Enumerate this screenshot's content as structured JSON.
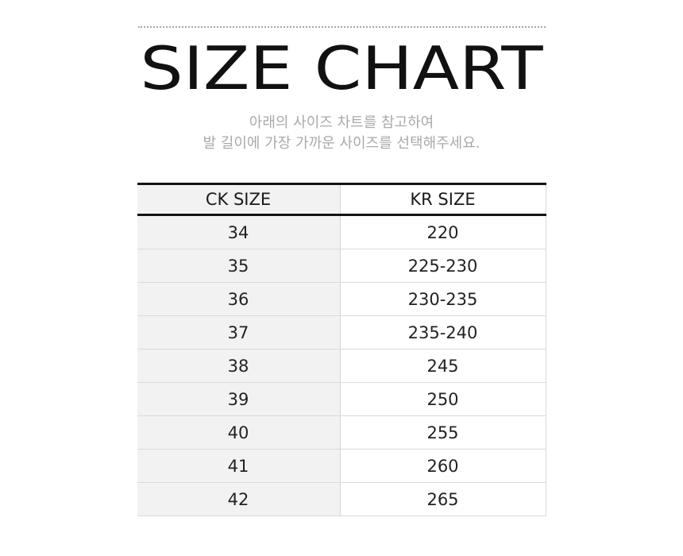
{
  "header": {
    "title": "SIZE CHART",
    "subtitle_line1": "아래의 사이즈 차트를 참고하여",
    "subtitle_line2": "발 길이에 가장 가까운 사이즈를 선택해주세요."
  },
  "chart_data": {
    "type": "table",
    "title": "SIZE CHART",
    "columns": [
      "CK SIZE",
      "KR SIZE"
    ],
    "rows": [
      [
        "34",
        "220"
      ],
      [
        "35",
        "225-230"
      ],
      [
        "36",
        "230-235"
      ],
      [
        "37",
        "235-240"
      ],
      [
        "38",
        "245"
      ],
      [
        "39",
        "250"
      ],
      [
        "40",
        "255"
      ],
      [
        "41",
        "260"
      ],
      [
        "42",
        "265"
      ]
    ]
  },
  "colors": {
    "title_text": "#111111",
    "subtitle_text": "#a9a9a9",
    "cell_text": "#222222",
    "shaded_column_bg": "#f2f2f2",
    "dark_border": "#141414",
    "light_border": "#dadada",
    "dotted_divider": "#a6a6a6",
    "page_background": "#ffffff"
  }
}
